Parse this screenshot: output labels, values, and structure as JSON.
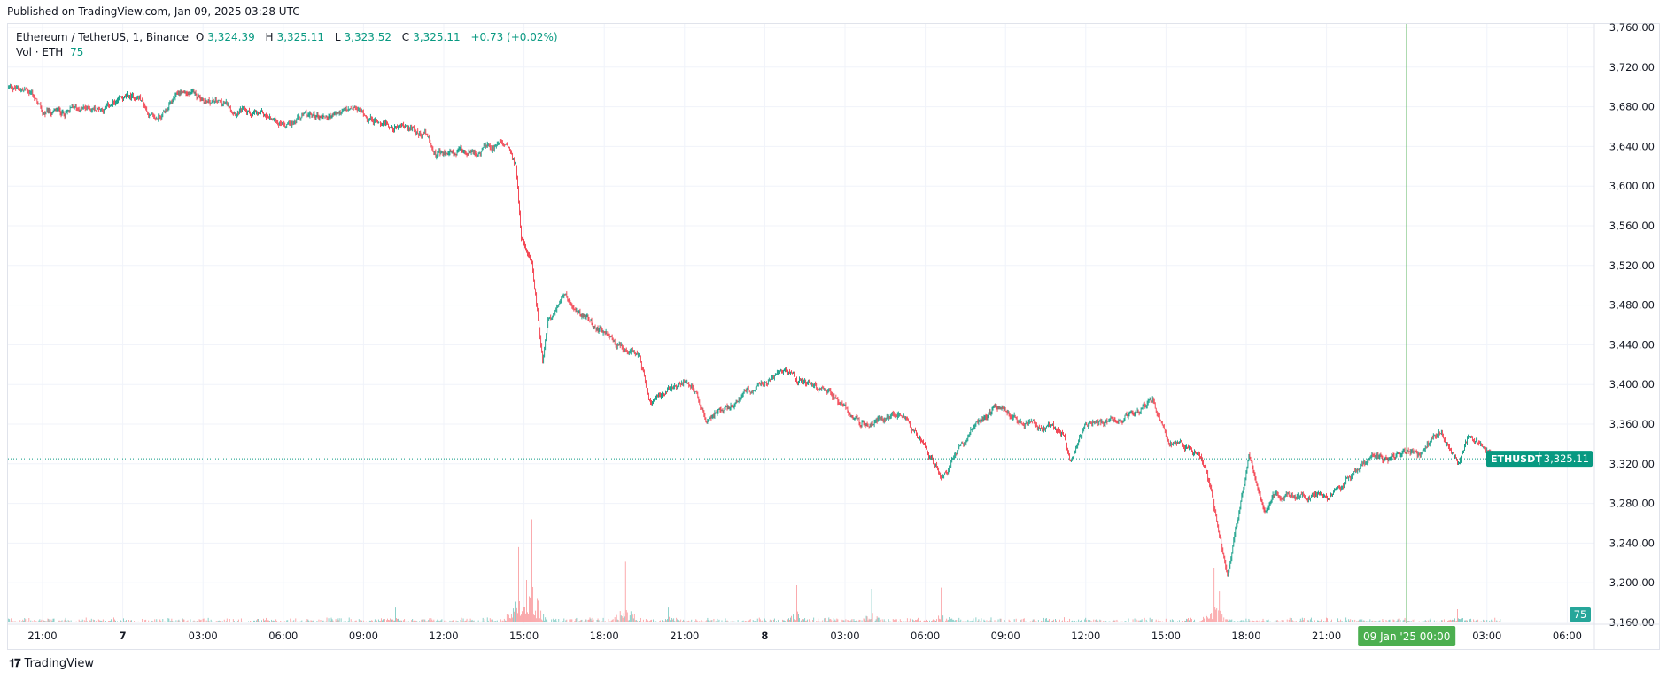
{
  "header": {
    "published": "Published on TradingView.com, Jan 09, 2025 03:28 UTC"
  },
  "legend": {
    "symbol": "Ethereum / TetherUS, 1, Binance",
    "o_label": "O",
    "open": "3,324.39",
    "h_label": "H",
    "high": "3,325.11",
    "l_label": "L",
    "low": "3,323.52",
    "c_label": "C",
    "close": "3,325.11",
    "change": "+0.73 (+0.02%)",
    "vol_label": "Vol · ETH",
    "vol_value": "75"
  },
  "price_tag": {
    "symbol": "ETHUSDT",
    "price": "3,325.11"
  },
  "volume_tag": "75",
  "crosshair_time_label": "09 Jan '25   00:00",
  "footer": {
    "brand": "TradingView"
  },
  "colors": {
    "up": "#089981",
    "down": "#f23645",
    "up_vol": "#80cbc4",
    "down_vol": "#faa1a4",
    "marker": "#4caf50",
    "grid": "#f0f3fa"
  },
  "chart_data": {
    "type": "candlestick",
    "title": "Ethereum / TetherUS, 1, Binance",
    "x_unit": "hours since Jan 6 21:00 UTC",
    "xlim": [
      -1.3,
      62
    ],
    "ylim": [
      3160,
      3765
    ],
    "y_ticks": [
      "3,760.00",
      "3,720.00",
      "3,680.00",
      "3,640.00",
      "3,600.00",
      "3,560.00",
      "3,520.00",
      "3,480.00",
      "3,440.00",
      "3,400.00",
      "3,360.00",
      "3,320.00",
      "3,280.00",
      "3,240.00",
      "3,200.00",
      "3,160.00"
    ],
    "y_tick_values": [
      3760,
      3720,
      3680,
      3640,
      3600,
      3560,
      3520,
      3480,
      3440,
      3400,
      3360,
      3320,
      3280,
      3240,
      3200,
      3160
    ],
    "x_ticks": [
      "21:00",
      "7",
      "03:00",
      "06:00",
      "09:00",
      "12:00",
      "15:00",
      "18:00",
      "21:00",
      "8",
      "03:00",
      "06:00",
      "09:00",
      "12:00",
      "15:00",
      "18:00",
      "21:00",
      "",
      "03:00",
      "06:00"
    ],
    "x_tick_hours": [
      0,
      3,
      6,
      9,
      12,
      15,
      18,
      21,
      24,
      27,
      30,
      33,
      36,
      39,
      42,
      45,
      48,
      51,
      54,
      57
    ],
    "crosshair_hour": 51,
    "last_price": 3325.11,
    "price_path": [
      [
        -1.27,
        3700
      ],
      [
        -0.4,
        3695
      ],
      [
        0,
        3672
      ],
      [
        2.4,
        3680
      ],
      [
        3.6,
        3690
      ],
      [
        4.2,
        3665
      ],
      [
        5.2,
        3695
      ],
      [
        6.4,
        3685
      ],
      [
        8.7,
        3665
      ],
      [
        11.7,
        3675
      ],
      [
        12.7,
        3665
      ],
      [
        14.3,
        3655
      ],
      [
        14.7,
        3630
      ],
      [
        16.3,
        3635
      ],
      [
        17.4,
        3640
      ],
      [
        17.7,
        3620
      ],
      [
        17.9,
        3550
      ],
      [
        18.3,
        3520
      ],
      [
        18.7,
        3420
      ],
      [
        18.9,
        3470
      ],
      [
        19.5,
        3485
      ],
      [
        20.7,
        3460
      ],
      [
        21.5,
        3440
      ],
      [
        22.3,
        3425
      ],
      [
        22.7,
        3385
      ],
      [
        24.2,
        3405
      ],
      [
        24.8,
        3365
      ],
      [
        26.2,
        3390
      ],
      [
        27.6,
        3410
      ],
      [
        29.4,
        3395
      ],
      [
        30.6,
        3360
      ],
      [
        32.2,
        3370
      ],
      [
        33.6,
        3310
      ],
      [
        35,
        3360
      ],
      [
        35.6,
        3375
      ],
      [
        38.2,
        3350
      ],
      [
        38.4,
        3325
      ],
      [
        39,
        3355
      ],
      [
        40.1,
        3365
      ],
      [
        41.5,
        3385
      ],
      [
        42.1,
        3345
      ],
      [
        43.3,
        3330
      ],
      [
        43.7,
        3290
      ],
      [
        44.3,
        3210
      ],
      [
        45.1,
        3325
      ],
      [
        45.7,
        3265
      ],
      [
        46.1,
        3290
      ],
      [
        48.1,
        3285
      ],
      [
        49.3,
        3320
      ],
      [
        50.7,
        3330
      ],
      [
        51.5,
        3330
      ],
      [
        52.3,
        3355
      ],
      [
        52.9,
        3320
      ],
      [
        53.3,
        3345
      ],
      [
        54.5,
        3325
      ]
    ],
    "volume_spikes": [
      [
        17.8,
        250
      ],
      [
        18.3,
        300
      ],
      [
        18.1,
        130
      ],
      [
        21.8,
        150
      ],
      [
        28.2,
        90
      ],
      [
        31.0,
        85
      ],
      [
        33.6,
        95
      ],
      [
        43.8,
        150
      ],
      [
        44.0,
        95
      ],
      [
        52.9,
        45
      ],
      [
        13.2,
        40
      ],
      [
        23.4,
        50
      ]
    ],
    "volume_ylim": [
      0,
      320
    ]
  }
}
